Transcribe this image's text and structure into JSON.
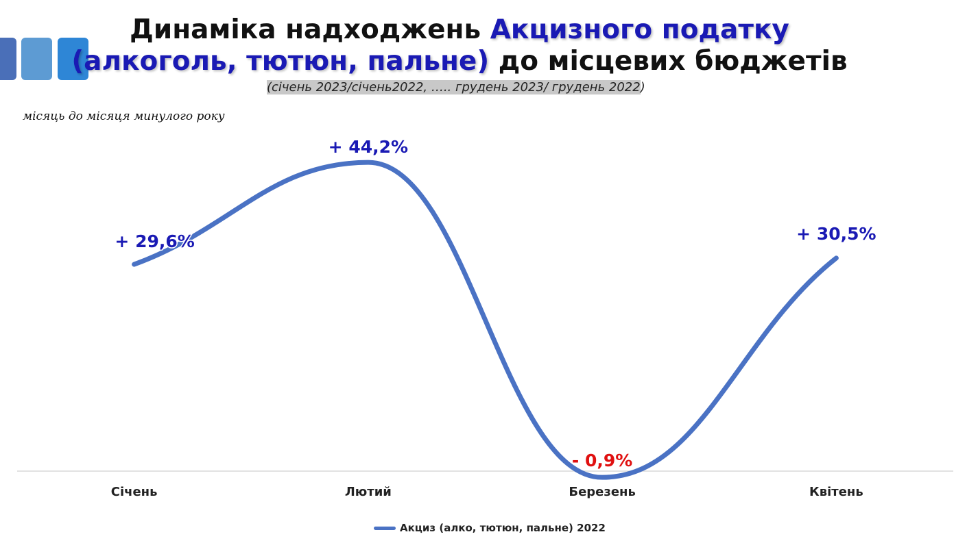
{
  "title": {
    "part1": "Динаміка надходжень ",
    "part1_accent": "Акцизного податку",
    "part2_accent": "(алкоголь, тютюн, пальне)",
    "part2": " до місцевих бюджетів"
  },
  "subtitle": {
    "highlighted": "(січень 2023/січень2022, ….. грудень 2023/ грудень 2022",
    "tail": ")"
  },
  "note": "місяць до місяця минулого року",
  "colors": {
    "line": "#4a72c4",
    "positive_label": "#1a1ab4",
    "negative_label": "#e01010",
    "accent": "#1a1ab4"
  },
  "chart_data": {
    "type": "line",
    "categories": [
      "Січень",
      "Лютий",
      "Березень",
      "Квітень"
    ],
    "series": [
      {
        "name": "Акциз (алко, тютюн, пальне) 2022",
        "values": [
          29.6,
          44.2,
          -0.9,
          30.5
        ]
      }
    ],
    "data_labels": [
      "+ 29,6%",
      "+ 44,2%",
      "- 0,9%",
      "+ 30,5%"
    ],
    "smooth": true,
    "grid": false,
    "legend_position": "bottom"
  }
}
